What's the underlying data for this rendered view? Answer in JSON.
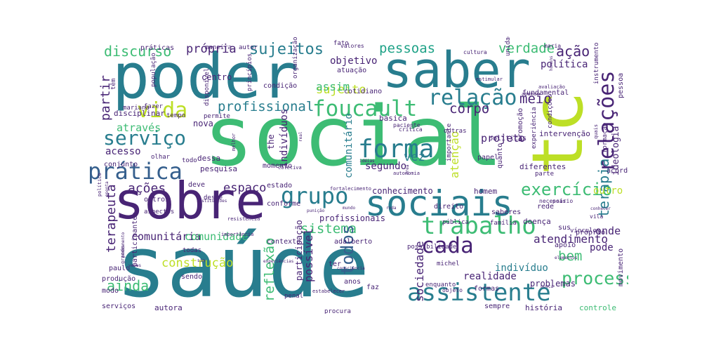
{
  "palette": {
    "dark_purple": "#482475",
    "teal": "#287d8e",
    "green": "#3dbc74",
    "yellow_green": "#bddf26",
    "cyan": "#1fa287",
    "blue": "#355f8d",
    "light_green": "#7ad151"
  },
  "words": [
    {
      "text": "social",
      "color": "green"
    },
    {
      "text": "saúde",
      "color": "teal"
    },
    {
      "text": "poder",
      "color": "teal"
    },
    {
      "text": "saber",
      "color": "teal"
    },
    {
      "text": "sobre",
      "color": "dark_purple"
    },
    {
      "text": "tc",
      "color": "yellow_green"
    },
    {
      "text": "sociais",
      "color": "teal"
    },
    {
      "text": "assistente",
      "color": "teal"
    },
    {
      "text": "trabalho",
      "color": "green"
    },
    {
      "text": "prática",
      "color": "blue"
    },
    {
      "text": "forma",
      "color": "teal"
    },
    {
      "text": "foucault",
      "color": "green"
    },
    {
      "text": "relação",
      "color": "teal"
    },
    {
      "text": "relações",
      "color": "dark_purple"
    },
    {
      "text": "serviço",
      "color": "teal"
    },
    {
      "text": "vida",
      "color": "yellow_green"
    },
    {
      "text": "grupo",
      "color": "teal"
    },
    {
      "text": "cada",
      "color": "dark_purple"
    },
    {
      "text": "processo",
      "color": "green"
    },
    {
      "text": "exercício",
      "color": "green"
    },
    {
      "text": "terapia",
      "color": "teal"
    },
    {
      "text": "profissional",
      "color": "teal"
    },
    {
      "text": "sujeitos",
      "color": "teal"
    },
    {
      "text": "pessoas",
      "color": "cyan"
    },
    {
      "text": "discurso",
      "color": "green"
    },
    {
      "text": "verdade",
      "color": "green"
    },
    {
      "text": "ação",
      "color": "dark_purple"
    },
    {
      "text": "própria",
      "color": "dark_purple"
    },
    {
      "text": "corpo",
      "color": "dark_purple"
    },
    {
      "text": "meio",
      "color": "dark_purple"
    },
    {
      "text": "ações",
      "color": "dark_purple"
    },
    {
      "text": "espaço",
      "color": "dark_purple"
    },
    {
      "text": "sistema",
      "color": "green"
    },
    {
      "text": "ainda",
      "color": "green"
    },
    {
      "text": "terapeuta",
      "color": "dark_purple"
    },
    {
      "text": "todos",
      "color": "blue"
    },
    {
      "text": "reflexão",
      "color": "green"
    },
    {
      "text": "atendimento",
      "color": "dark_purple"
    },
    {
      "text": "bem",
      "color": "green"
    },
    {
      "text": "sujeito",
      "color": "yellow_green"
    },
    {
      "text": "assim",
      "color": "green"
    },
    {
      "text": "atenção",
      "color": "yellow_green"
    },
    {
      "text": "vez",
      "color": "teal"
    },
    {
      "text": "projeto",
      "color": "dark_purple"
    },
    {
      "text": "comunitário",
      "color": "teal"
    },
    {
      "text": "ideologia",
      "color": "dark_purple"
    },
    {
      "text": "política",
      "color": "dark_purple"
    },
    {
      "text": "partir",
      "color": "dark_purple"
    },
    {
      "text": "através",
      "color": "green"
    },
    {
      "text": "acesso",
      "color": "dark_purple"
    },
    {
      "text": "sociedade",
      "color": "dark_purple"
    },
    {
      "text": "comunitária",
      "color": "dark_purple"
    },
    {
      "text": "comunidade",
      "color": "green"
    },
    {
      "text": "construção",
      "color": "yellow_green"
    },
    {
      "text": "onde",
      "color": "dark_purple"
    },
    {
      "text": "pode",
      "color": "dark_purple"
    },
    {
      "text": "indivíduo",
      "color": "teal"
    },
    {
      "text": "realidade",
      "color": "dark_purple"
    },
    {
      "text": "possível",
      "color": "dark_purple"
    },
    {
      "text": "segundo",
      "color": "dark_purple"
    },
    {
      "text": "outro",
      "color": "yellow_green"
    },
    {
      "text": "indivíduos",
      "color": "dark_purple"
    },
    {
      "text": "conhecimento",
      "color": "dark_purple"
    },
    {
      "text": "objetivo",
      "color": "dark_purple"
    },
    {
      "text": "autora",
      "color": "dark_purple"
    },
    {
      "text": "história",
      "color": "dark_purple"
    },
    {
      "text": "controle",
      "color": "green"
    },
    {
      "text": "serviços",
      "color": "dark_purple"
    },
    {
      "text": "problemas",
      "color": "dark_purple"
    },
    {
      "text": "movimento",
      "color": "dark_purple"
    },
    {
      "text": "sempre",
      "color": "dark_purple"
    },
    {
      "text": "formas",
      "color": "dark_purple"
    },
    {
      "text": "penal",
      "color": "dark_purple"
    },
    {
      "text": "procura",
      "color": "dark_purple"
    },
    {
      "text": "anos",
      "color": "dark_purple"
    },
    {
      "text": "faz",
      "color": "dark_purple"
    },
    {
      "text": "enquanto",
      "color": "dark_purple"
    },
    {
      "text": "objeto",
      "color": "dark_purple"
    },
    {
      "text": "paulo",
      "color": "dark_purple"
    },
    {
      "text": "sendo",
      "color": "dark_purple"
    },
    {
      "text": "produção",
      "color": "dark_purple"
    },
    {
      "text": "modo",
      "color": "dark_purple"
    },
    {
      "text": "todas",
      "color": "dark_purple"
    },
    {
      "text": "participação",
      "color": "dark_purple"
    },
    {
      "text": "ter",
      "color": "dark_purple"
    },
    {
      "text": "michel",
      "color": "dark_purple"
    },
    {
      "text": "possibilidade",
      "color": "dark_purple"
    },
    {
      "text": "apoio",
      "color": "dark_purple"
    },
    {
      "text": "próprio",
      "color": "dark_purple"
    },
    {
      "text": "família",
      "color": "dark_purple"
    },
    {
      "text": "doença",
      "color": "dark_purple"
    },
    {
      "text": "rede",
      "color": "dark_purple"
    },
    {
      "text": "saberes",
      "color": "dark_purple"
    },
    {
      "text": "homem",
      "color": "dark_purple"
    },
    {
      "text": "direito",
      "color": "dark_purple"
    },
    {
      "text": "pública",
      "color": "dark_purple"
    },
    {
      "text": "sus",
      "color": "dark_purple"
    },
    {
      "text": "profissionais",
      "color": "dark_purple"
    },
    {
      "text": "contexto",
      "color": "dark_purple"
    },
    {
      "text": "adalberto",
      "color": "dark_purple"
    },
    {
      "text": "participantes",
      "color": "dark_purple"
    },
    {
      "text": "aspectos",
      "color": "dark_purple"
    },
    {
      "text": "outros",
      "color": "dark_purple"
    },
    {
      "text": "desse",
      "color": "dark_purple"
    },
    {
      "text": "estado",
      "color": "dark_purple"
    },
    {
      "text": "conforme",
      "color": "dark_purple"
    },
    {
      "text": "deve",
      "color": "dark_purple"
    },
    {
      "text": "pesquisa",
      "color": "dark_purple"
    },
    {
      "text": "dessa",
      "color": "dark_purple"
    },
    {
      "text": "diferentes",
      "color": "dark_purple"
    },
    {
      "text": "parte",
      "color": "dark_purple"
    },
    {
      "text": "formação",
      "color": "dark_purple"
    },
    {
      "text": "quanto",
      "color": "dark_purple"
    },
    {
      "text": "papel",
      "color": "dark_purple"
    },
    {
      "text": "importante",
      "color": "dark_purple"
    },
    {
      "text": "básica",
      "color": "dark_purple"
    },
    {
      "text": "momento",
      "color": "dark_purple"
    },
    {
      "text": "the",
      "color": "dark_purple"
    },
    {
      "text": "condição",
      "color": "dark_purple"
    },
    {
      "text": "atuação",
      "color": "dark_purple"
    },
    {
      "text": "cotidiano",
      "color": "dark_purple"
    },
    {
      "text": "fundamental",
      "color": "dark_purple"
    },
    {
      "text": "políticas",
      "color": "dark_purple"
    },
    {
      "text": "outras",
      "color": "dark_purple"
    },
    {
      "text": "intervenção",
      "color": "dark_purple"
    },
    {
      "text": "experiência",
      "color": "dark_purple"
    },
    {
      "text": "promoção",
      "color": "dark_purple"
    },
    {
      "text": "condições",
      "color": "dark_purple"
    },
    {
      "text": "vínculos",
      "color": "dark_purple"
    },
    {
      "text": "vila",
      "color": "dark_purple"
    },
    {
      "text": "pessoa",
      "color": "dark_purple"
    },
    {
      "text": "instrumento",
      "color": "dark_purple"
    },
    {
      "text": "unidade",
      "color": "dark_purple"
    },
    {
      "text": "disciplinar",
      "color": "dark_purple"
    },
    {
      "text": "fazer",
      "color": "dark_purple"
    },
    {
      "text": "tempo",
      "color": "dark_purple"
    },
    {
      "text": "olhar",
      "color": "dark_purple"
    },
    {
      "text": "todo",
      "color": "dark_purple"
    },
    {
      "text": "conjunto",
      "color": "dark_purple"
    },
    {
      "text": "mariana",
      "color": "dark_purple"
    },
    {
      "text": "permite",
      "color": "dark_purple"
    },
    {
      "text": "nova",
      "color": "dark_purple"
    },
    {
      "text": "práticas",
      "color": "dark_purple"
    },
    {
      "text": "maneira",
      "color": "dark_purple"
    },
    {
      "text": "autor",
      "color": "dark_purple"
    },
    {
      "text": "centro",
      "color": "dark_purple"
    },
    {
      "text": "têm",
      "color": "dark_purple"
    },
    {
      "text": "população",
      "color": "dark_purple"
    },
    {
      "text": "disponível",
      "color": "dark_purple"
    },
    {
      "text": "princípios",
      "color": "dark_purple"
    },
    {
      "text": "organização",
      "color": "dark_purple"
    },
    {
      "text": "fato",
      "color": "dark_purple"
    },
    {
      "text": "valores",
      "color": "dark_purple"
    },
    {
      "text": "cultura",
      "color": "dark_purple"
    },
    {
      "text": "maria",
      "color": "dark_purple"
    },
    {
      "text": "apenas",
      "color": "dark_purple"
    },
    {
      "text": "estimular",
      "color": "dark_purple"
    },
    {
      "text": "avaliação",
      "color": "dark_purple"
    },
    {
      "text": "homens",
      "color": "dark_purple"
    },
    {
      "text": "quais",
      "color": "dark_purple"
    },
    {
      "text": "acordo",
      "color": "dark_purple"
    },
    {
      "text": "paciente",
      "color": "dark_purple"
    },
    {
      "text": "crítica",
      "color": "dark_purple"
    },
    {
      "text": "real",
      "color": "dark_purple"
    },
    {
      "text": "idéias",
      "color": "dark_purple"
    },
    {
      "text": "coletiva",
      "color": "dark_purple"
    },
    {
      "text": "melhor",
      "color": "dark_purple"
    },
    {
      "text": "autonomia",
      "color": "dark_purple"
    },
    {
      "text": "área",
      "color": "dark_purple"
    },
    {
      "text": "fortalecimento",
      "color": "dark_purple"
    },
    {
      "text": "necessário",
      "color": "dark_purple"
    },
    {
      "text": "pois",
      "color": "dark_purple"
    },
    {
      "text": "roda",
      "color": "dark_purple"
    },
    {
      "text": "mundo",
      "color": "dark_purple"
    },
    {
      "text": "punição",
      "color": "dark_purple"
    },
    {
      "text": "resistência",
      "color": "dark_purple"
    },
    {
      "text": "político",
      "color": "dark_purple"
    },
    {
      "text": "aponta",
      "color": "dark_purple"
    },
    {
      "text": "instituições",
      "color": "dark_purple"
    },
    {
      "text": "importância",
      "color": "dark_purple"
    },
    {
      "text": "pensamento",
      "color": "dark_purple"
    },
    {
      "text": "grande",
      "color": "dark_purple"
    },
    {
      "text": "vezes",
      "color": "dark_purple"
    },
    {
      "text": "sim",
      "color": "dark_purple"
    },
    {
      "text": "experiências",
      "color": "dark_purple"
    },
    {
      "text": "estabelecer",
      "color": "dark_purple"
    },
    {
      "text": "consciência",
      "color": "dark_purple"
    },
    {
      "text": "elementos",
      "color": "dark_purple"
    },
    {
      "text": "busca",
      "color": "dark_purple"
    },
    {
      "text": "conhecer",
      "color": "dark_purple"
    },
    {
      "text": "capitalismo",
      "color": "dark_purple"
    }
  ]
}
